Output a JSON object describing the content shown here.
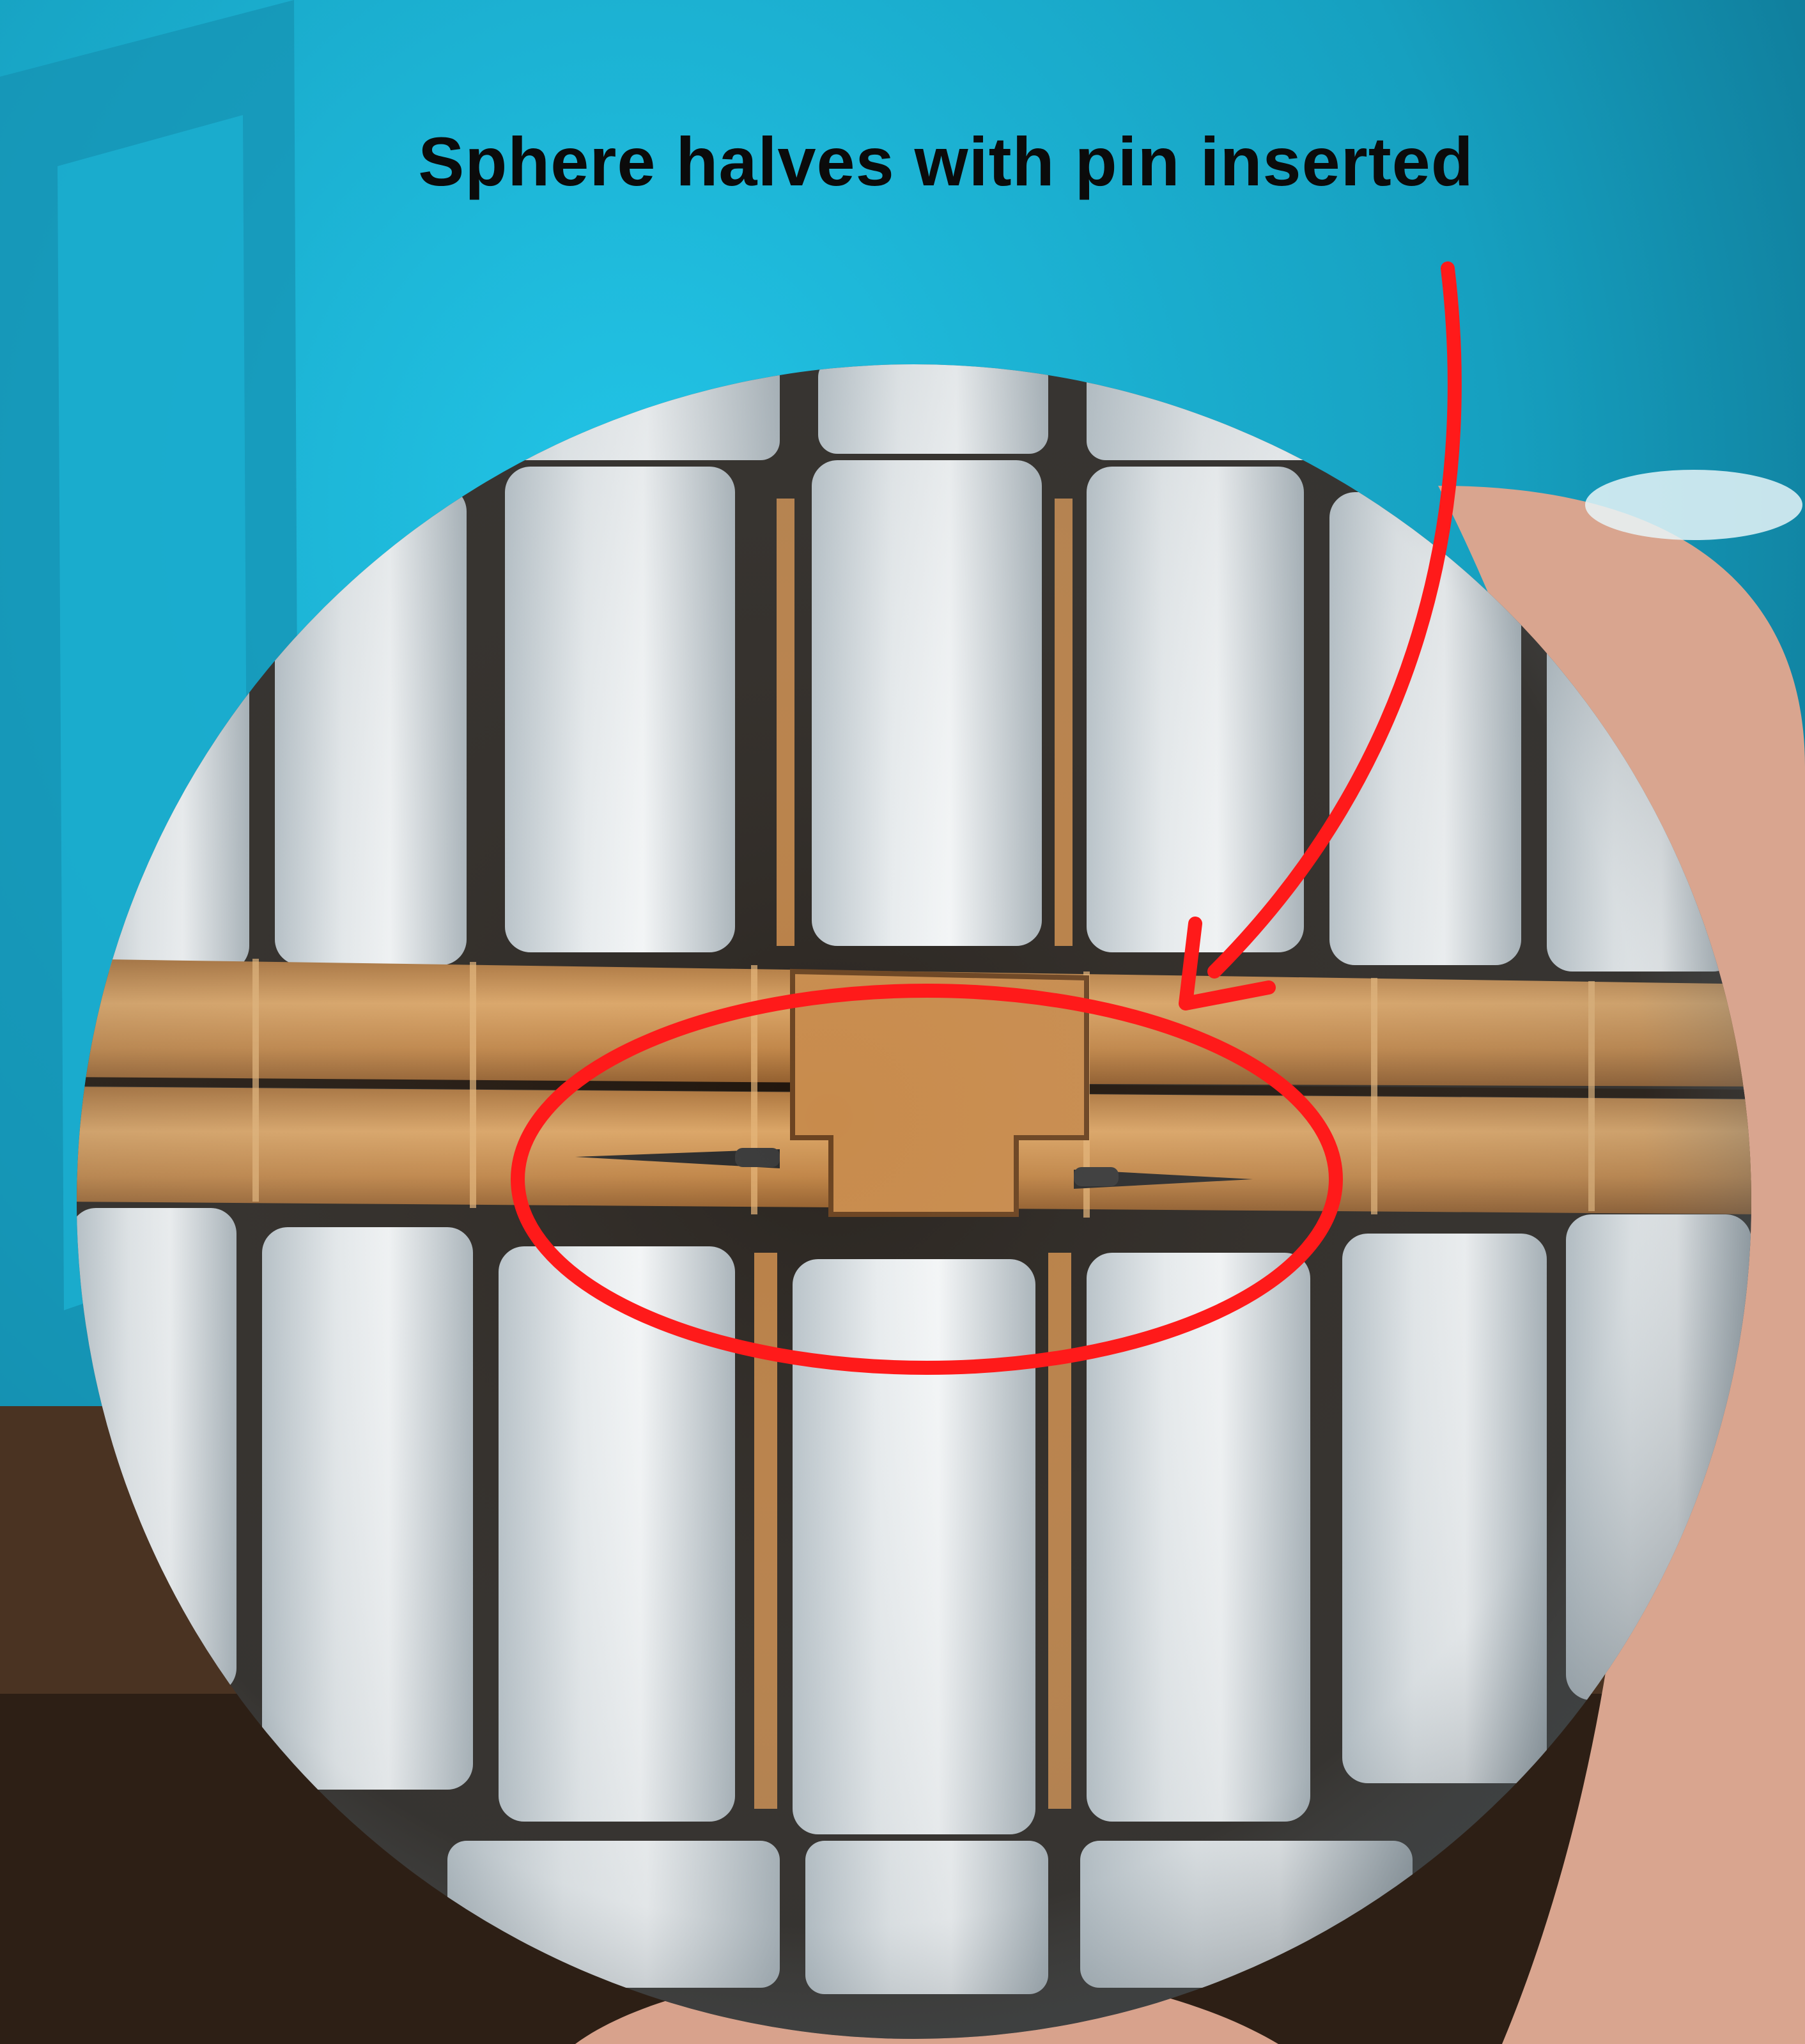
{
  "annotation": {
    "caption": "Sphere halves with pin inserted",
    "arrow_color": "#ff1a1a",
    "ellipse_color": "#ff1a1a"
  },
  "photo": {
    "background_color": "#1aa8c8",
    "table_color": "#4a3322",
    "panel_color": "#d9dde0",
    "band_color": "#c8914f",
    "pin_color": "#2a2a2a"
  }
}
